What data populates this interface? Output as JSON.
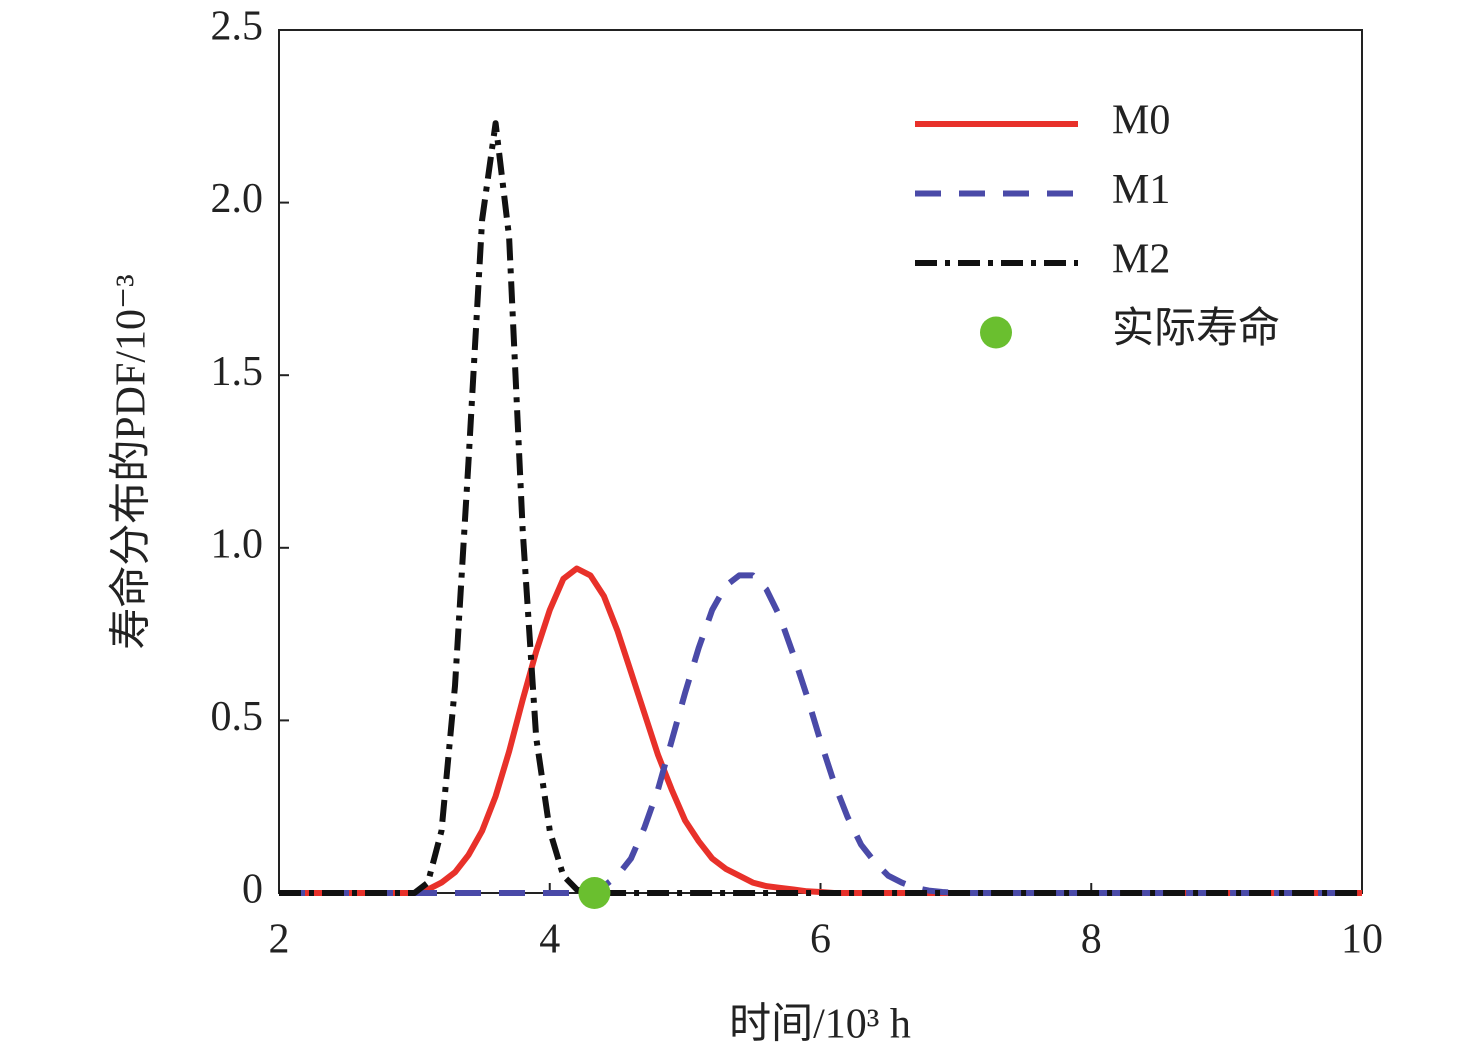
{
  "chart_data": {
    "type": "line",
    "x_label": "时间/10³ h",
    "y_label": "寿命分布的PDF/10⁻³",
    "x": [
      2,
      2.5,
      3.0,
      3.1,
      3.2,
      3.3,
      3.4,
      3.5,
      3.6,
      3.7,
      3.8,
      3.9,
      4.0,
      4.1,
      4.2,
      4.3,
      4.4,
      4.5,
      4.6,
      4.7,
      4.8,
      4.9,
      5.0,
      5.1,
      5.2,
      5.3,
      5.4,
      5.5,
      5.6,
      5.7,
      5.8,
      5.9,
      6.0,
      6.1,
      6.2,
      6.3,
      6.4,
      6.5,
      6.6,
      6.7,
      6.8,
      6.9,
      7.0,
      8,
      9,
      10
    ],
    "series": [
      {
        "name": "M0",
        "color": "#e8312a",
        "dash": "solid",
        "values": [
          0,
          0,
          0,
          0.01,
          0.03,
          0.06,
          0.11,
          0.18,
          0.28,
          0.41,
          0.56,
          0.7,
          0.82,
          0.91,
          0.94,
          0.92,
          0.86,
          0.76,
          0.64,
          0.52,
          0.4,
          0.3,
          0.21,
          0.15,
          0.1,
          0.07,
          0.05,
          0.03,
          0.02,
          0.015,
          0.01,
          0.005,
          0.003,
          0,
          0,
          0,
          0,
          0,
          0,
          0,
          0,
          0,
          0,
          0,
          0,
          0
        ]
      },
      {
        "name": "M1",
        "color": "#4a4aa8",
        "dash": "dashed",
        "values": [
          0,
          0,
          0,
          0,
          0,
          0,
          0,
          0,
          0,
          0,
          0,
          0,
          0,
          0,
          0,
          0,
          0.02,
          0.05,
          0.1,
          0.19,
          0.3,
          0.44,
          0.58,
          0.71,
          0.82,
          0.89,
          0.92,
          0.92,
          0.88,
          0.8,
          0.69,
          0.57,
          0.44,
          0.32,
          0.22,
          0.14,
          0.09,
          0.05,
          0.03,
          0.015,
          0.007,
          0.003,
          0,
          0,
          0,
          0
        ]
      },
      {
        "name": "M2",
        "color": "#111111",
        "dash": "dashdot",
        "values": [
          0,
          0,
          0,
          0.03,
          0.18,
          0.6,
          1.25,
          1.95,
          2.23,
          1.9,
          1.05,
          0.45,
          0.18,
          0.05,
          0.01,
          0,
          0,
          0,
          0,
          0,
          0,
          0,
          0,
          0,
          0,
          0,
          0,
          0,
          0,
          0,
          0,
          0,
          0,
          0,
          0,
          0,
          0,
          0,
          0,
          0,
          0,
          0,
          0,
          0,
          0,
          0
        ]
      }
    ],
    "points": {
      "name": "实际寿命",
      "color": "#6abf2f",
      "x": [
        4.33
      ],
      "values": [
        0
      ]
    },
    "xlim": [
      2,
      10
    ],
    "xticks": [
      2,
      4,
      6,
      8,
      10
    ],
    "ylim": [
      0,
      2.5
    ],
    "yticks": [
      0,
      0.5,
      {
        "value": 1,
        "label": "1.0"
      },
      1.5,
      {
        "value": 2,
        "label": "2.0"
      },
      2.5
    ],
    "legend": "upper right",
    "grid": false
  }
}
